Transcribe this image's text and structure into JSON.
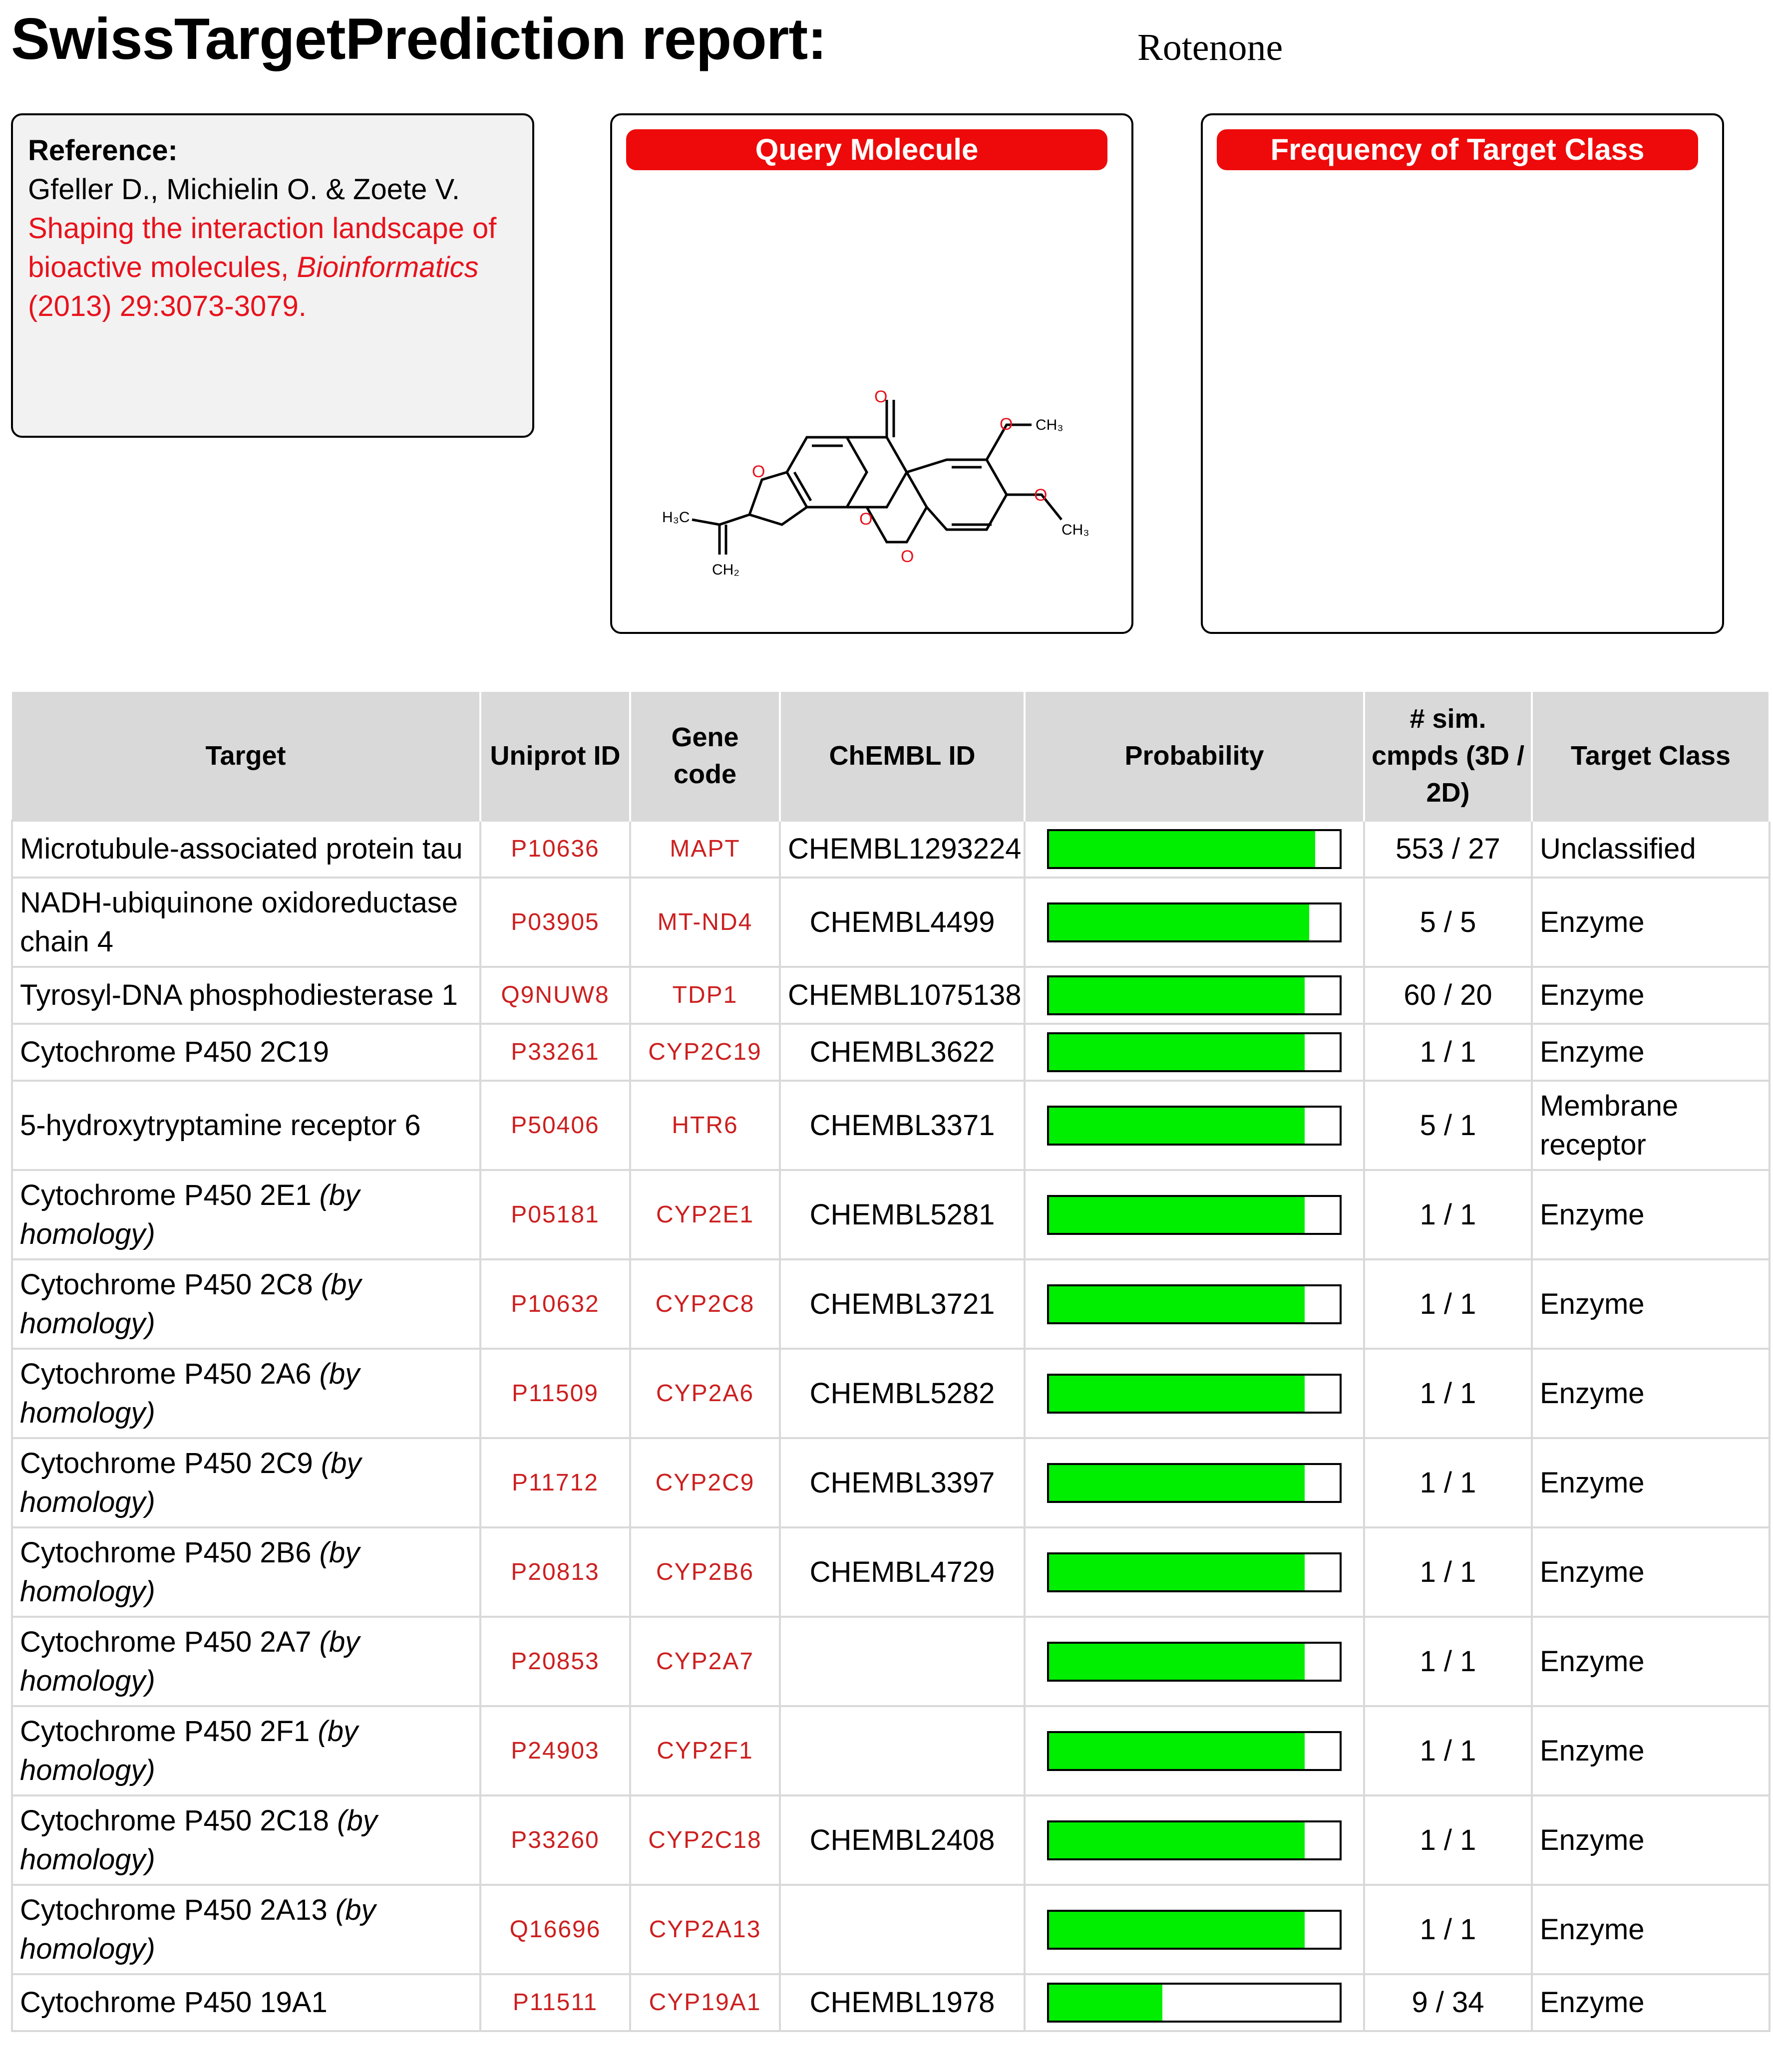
{
  "report": {
    "title": "SwissTargetPrediction report:",
    "molecule_name": "Rotenone"
  },
  "reference": {
    "heading": "Reference:",
    "authors": "Gfeller D., Michielin O. & Zoete V.",
    "title_part": "Shaping the interaction landscape of bioactive molecules,",
    "journal": "Bioinformatics",
    "citation": "(2013) 29:3073-3079."
  },
  "panels": {
    "query_molecule": "Query Molecule",
    "frequency": "Frequency of Target Class"
  },
  "structure_labels": {
    "h3c": "H₃C",
    "ch2": "CH₂",
    "ch3_top": "CH₃",
    "ch3_bottom": "CH₃",
    "o": "O"
  },
  "colors": {
    "accent_red": "#ee0a0a",
    "link_red": "#e8121c",
    "bar_green": "#00ee00",
    "header_gray": "#d9d9d9"
  },
  "table": {
    "headers": {
      "target": "Target",
      "uniprot": "Uniprot ID",
      "gene": "Gene code",
      "chembl": "ChEMBL ID",
      "probability": "Probability",
      "sim": "# sim. cmpds (3D / 2D)",
      "target_class": "Target Class"
    },
    "rows": [
      {
        "target": "Microtubule-associated protein tau",
        "homology": "",
        "uniprot": "P10636",
        "gene": "MAPT",
        "chembl": "CHEMBL1293224",
        "probability": 0.915,
        "sim": "553 / 27",
        "target_class": "Unclassified"
      },
      {
        "target": "NADH-ubiquinone oxidoreductase chain 4",
        "homology": "",
        "uniprot": "P03905",
        "gene": "MT-ND4",
        "chembl": "CHEMBL4499",
        "probability": 0.895,
        "sim": "5 / 5",
        "target_class": "Enzyme"
      },
      {
        "target": "Tyrosyl-DNA phosphodiesterase 1",
        "homology": "",
        "uniprot": "Q9NUW8",
        "gene": "TDP1",
        "chembl": "CHEMBL1075138",
        "probability": 0.88,
        "sim": "60 / 20",
        "target_class": "Enzyme"
      },
      {
        "target": "Cytochrome P450 2C19",
        "homology": "",
        "uniprot": "P33261",
        "gene": "CYP2C19",
        "chembl": "CHEMBL3622",
        "probability": 0.88,
        "sim": "1 / 1",
        "target_class": "Enzyme"
      },
      {
        "target": "5-hydroxytryptamine receptor 6",
        "homology": "",
        "uniprot": "P50406",
        "gene": "HTR6",
        "chembl": "CHEMBL3371",
        "probability": 0.88,
        "sim": "5 / 1",
        "target_class": "Membrane receptor"
      },
      {
        "target": "Cytochrome P450 2E1 ",
        "homology": "(by homology)",
        "uniprot": "P05181",
        "gene": "CYP2E1",
        "chembl": "CHEMBL5281",
        "probability": 0.88,
        "sim": "1 / 1",
        "target_class": "Enzyme"
      },
      {
        "target": "Cytochrome P450 2C8 ",
        "homology": "(by homology)",
        "uniprot": "P10632",
        "gene": "CYP2C8",
        "chembl": "CHEMBL3721",
        "probability": 0.88,
        "sim": "1 / 1",
        "target_class": "Enzyme"
      },
      {
        "target": "Cytochrome P450 2A6 ",
        "homology": "(by homology)",
        "uniprot": "P11509",
        "gene": "CYP2A6",
        "chembl": "CHEMBL5282",
        "probability": 0.88,
        "sim": "1 / 1",
        "target_class": "Enzyme"
      },
      {
        "target": "Cytochrome P450 2C9 ",
        "homology": "(by homology)",
        "uniprot": "P11712",
        "gene": "CYP2C9",
        "chembl": "CHEMBL3397",
        "probability": 0.88,
        "sim": "1 / 1",
        "target_class": "Enzyme"
      },
      {
        "target": "Cytochrome P450 2B6 ",
        "homology": "(by homology)",
        "uniprot": "P20813",
        "gene": "CYP2B6",
        "chembl": "CHEMBL4729",
        "probability": 0.88,
        "sim": "1 / 1",
        "target_class": "Enzyme"
      },
      {
        "target": "Cytochrome P450 2A7 ",
        "homology": "(by homology)",
        "uniprot": "P20853",
        "gene": "CYP2A7",
        "chembl": "",
        "probability": 0.88,
        "sim": "1 / 1",
        "target_class": "Enzyme"
      },
      {
        "target": "Cytochrome P450 2F1 ",
        "homology": "(by homology)",
        "uniprot": "P24903",
        "gene": "CYP2F1",
        "chembl": "",
        "probability": 0.88,
        "sim": "1 / 1",
        "target_class": "Enzyme"
      },
      {
        "target": "Cytochrome P450 2C18 ",
        "homology": "(by homology)",
        "uniprot": "P33260",
        "gene": "CYP2C18",
        "chembl": "CHEMBL2408",
        "probability": 0.88,
        "sim": "1 / 1",
        "target_class": "Enzyme"
      },
      {
        "target": "Cytochrome P450 2A13 ",
        "homology": "(by homology)",
        "uniprot": "Q16696",
        "gene": "CYP2A13",
        "chembl": "",
        "probability": 0.88,
        "sim": "1 / 1",
        "target_class": "Enzyme"
      },
      {
        "target": "Cytochrome P450 19A1",
        "homology": "",
        "uniprot": "P11511",
        "gene": "CYP19A1",
        "chembl": "CHEMBL1978",
        "probability": 0.39,
        "sim": "9 / 34",
        "target_class": "Enzyme"
      }
    ]
  }
}
